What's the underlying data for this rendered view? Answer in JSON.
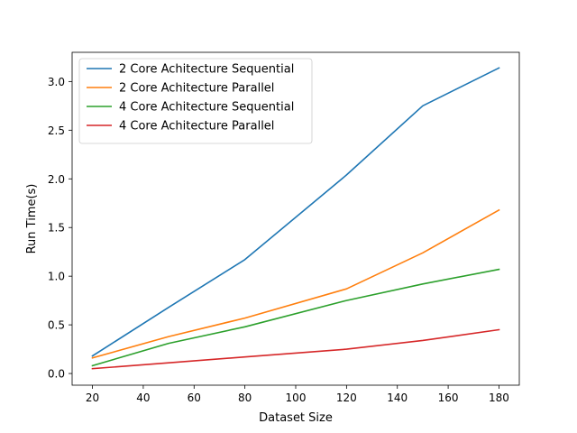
{
  "chart_data": {
    "type": "line",
    "xlabel": "Dataset Size",
    "ylabel": "Run Time(s)",
    "xlim": [
      12,
      188
    ],
    "ylim": [
      -0.12,
      3.3
    ],
    "xticks": [
      20,
      40,
      60,
      80,
      100,
      120,
      140,
      160,
      180
    ],
    "xtick_labels": [
      "20",
      "40",
      "60",
      "80",
      "100",
      "120",
      "140",
      "160",
      "180"
    ],
    "yticks": [
      0.0,
      0.5,
      1.0,
      1.5,
      2.0,
      2.5,
      3.0
    ],
    "ytick_labels": [
      "0.0",
      "0.5",
      "1.0",
      "1.5",
      "2.0",
      "2.5",
      "3.0"
    ],
    "legend_position": "upper-left",
    "grid": false,
    "series": [
      {
        "name": "2 Core Achitecture Sequential",
        "color": "#1f77b4",
        "x": [
          20,
          50,
          80,
          120,
          150,
          180
        ],
        "y": [
          0.18,
          0.68,
          1.17,
          2.04,
          2.75,
          3.14
        ]
      },
      {
        "name": "2 Core Achitecture Parallel",
        "color": "#ff7f0e",
        "x": [
          20,
          50,
          80,
          120,
          150,
          180
        ],
        "y": [
          0.16,
          0.38,
          0.57,
          0.87,
          1.24,
          1.68
        ]
      },
      {
        "name": "4 Core Achitecture Sequential",
        "color": "#2ca02c",
        "x": [
          20,
          50,
          80,
          120,
          150,
          180
        ],
        "y": [
          0.08,
          0.31,
          0.48,
          0.75,
          0.92,
          1.07
        ]
      },
      {
        "name": "4 Core Achitecture Parallel",
        "color": "#d62728",
        "x": [
          20,
          50,
          80,
          120,
          150,
          180
        ],
        "y": [
          0.05,
          0.11,
          0.17,
          0.25,
          0.34,
          0.45
        ]
      }
    ]
  }
}
